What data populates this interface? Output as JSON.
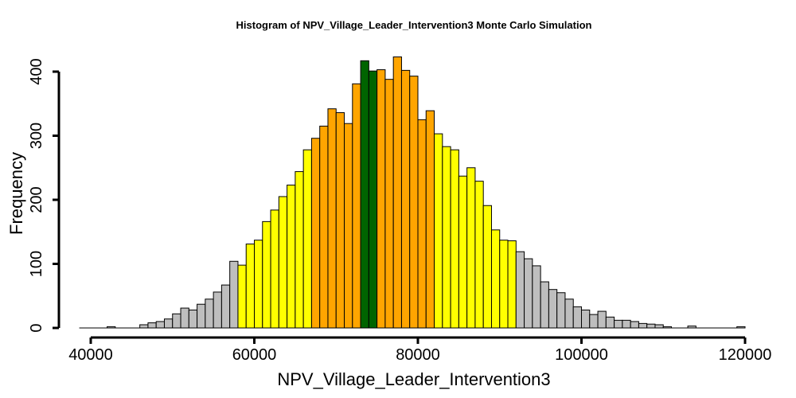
{
  "chart_data": {
    "type": "bar",
    "title": "Histogram of  NPV_Village_Leader_Intervention3  Monte Carlo Simulation",
    "xlabel": "NPV_Village_Leader_Intervention3",
    "ylabel": "Frequency",
    "xlim": [
      40000,
      120000
    ],
    "ylim": [
      0,
      400
    ],
    "x_ticks": [
      "40000",
      "60000",
      "80000",
      "100000",
      "120000"
    ],
    "y_ticks": [
      "0",
      "100",
      "200",
      "300",
      "400"
    ],
    "bin_width": 1000,
    "bin_start": 42000,
    "values": [
      2,
      0,
      0,
      0,
      5,
      8,
      10,
      14,
      22,
      31,
      28,
      37,
      45,
      56,
      67,
      104,
      98,
      131,
      137,
      166,
      184,
      205,
      223,
      244,
      278,
      296,
      315,
      342,
      336,
      319,
      381,
      417,
      401,
      403,
      388,
      423,
      402,
      393,
      325,
      339,
      303,
      283,
      278,
      237,
      250,
      229,
      191,
      153,
      137,
      136,
      119,
      108,
      97,
      72,
      60,
      55,
      45,
      33,
      28,
      21,
      26,
      17,
      12,
      12,
      10,
      7,
      6,
      5,
      2,
      0,
      0,
      3,
      0,
      0,
      0,
      0,
      0,
      2
    ],
    "bin_colors": {
      "tail": "#bebebe",
      "outer": "#ffff00",
      "inner": "#ffa500",
      "center": "#006400"
    },
    "color_breaks": {
      "outer_start": 58000,
      "inner_start": 67000,
      "center_start": 73000,
      "center_end": 75000,
      "inner_end": 82000,
      "outer_end": 92000
    }
  }
}
